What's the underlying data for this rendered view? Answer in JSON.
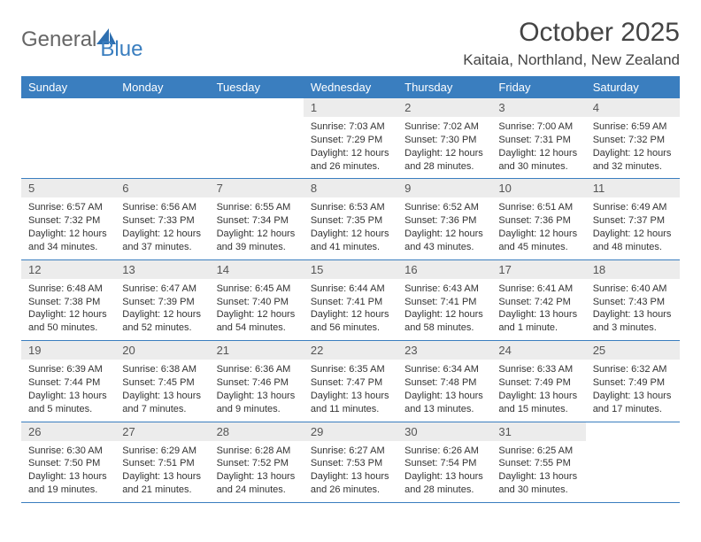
{
  "brand": {
    "part1": "General",
    "part2": "Blue"
  },
  "title": "October 2025",
  "location": "Kaitaia, Northland, New Zealand",
  "theme": {
    "header_bg": "#3a7ebf",
    "header_fg": "#ffffff",
    "daynum_bg": "#ececec",
    "border_color": "#3a7ebf",
    "text_color": "#333333"
  },
  "weekdays": [
    "Sunday",
    "Monday",
    "Tuesday",
    "Wednesday",
    "Thursday",
    "Friday",
    "Saturday"
  ],
  "weeks": [
    [
      null,
      null,
      null,
      {
        "n": "1",
        "sr": "7:03 AM",
        "ss": "7:29 PM",
        "dl": "12 hours and 26 minutes."
      },
      {
        "n": "2",
        "sr": "7:02 AM",
        "ss": "7:30 PM",
        "dl": "12 hours and 28 minutes."
      },
      {
        "n": "3",
        "sr": "7:00 AM",
        "ss": "7:31 PM",
        "dl": "12 hours and 30 minutes."
      },
      {
        "n": "4",
        "sr": "6:59 AM",
        "ss": "7:32 PM",
        "dl": "12 hours and 32 minutes."
      }
    ],
    [
      {
        "n": "5",
        "sr": "6:57 AM",
        "ss": "7:32 PM",
        "dl": "12 hours and 34 minutes."
      },
      {
        "n": "6",
        "sr": "6:56 AM",
        "ss": "7:33 PM",
        "dl": "12 hours and 37 minutes."
      },
      {
        "n": "7",
        "sr": "6:55 AM",
        "ss": "7:34 PM",
        "dl": "12 hours and 39 minutes."
      },
      {
        "n": "8",
        "sr": "6:53 AM",
        "ss": "7:35 PM",
        "dl": "12 hours and 41 minutes."
      },
      {
        "n": "9",
        "sr": "6:52 AM",
        "ss": "7:36 PM",
        "dl": "12 hours and 43 minutes."
      },
      {
        "n": "10",
        "sr": "6:51 AM",
        "ss": "7:36 PM",
        "dl": "12 hours and 45 minutes."
      },
      {
        "n": "11",
        "sr": "6:49 AM",
        "ss": "7:37 PM",
        "dl": "12 hours and 48 minutes."
      }
    ],
    [
      {
        "n": "12",
        "sr": "6:48 AM",
        "ss": "7:38 PM",
        "dl": "12 hours and 50 minutes."
      },
      {
        "n": "13",
        "sr": "6:47 AM",
        "ss": "7:39 PM",
        "dl": "12 hours and 52 minutes."
      },
      {
        "n": "14",
        "sr": "6:45 AM",
        "ss": "7:40 PM",
        "dl": "12 hours and 54 minutes."
      },
      {
        "n": "15",
        "sr": "6:44 AM",
        "ss": "7:41 PM",
        "dl": "12 hours and 56 minutes."
      },
      {
        "n": "16",
        "sr": "6:43 AM",
        "ss": "7:41 PM",
        "dl": "12 hours and 58 minutes."
      },
      {
        "n": "17",
        "sr": "6:41 AM",
        "ss": "7:42 PM",
        "dl": "13 hours and 1 minute."
      },
      {
        "n": "18",
        "sr": "6:40 AM",
        "ss": "7:43 PM",
        "dl": "13 hours and 3 minutes."
      }
    ],
    [
      {
        "n": "19",
        "sr": "6:39 AM",
        "ss": "7:44 PM",
        "dl": "13 hours and 5 minutes."
      },
      {
        "n": "20",
        "sr": "6:38 AM",
        "ss": "7:45 PM",
        "dl": "13 hours and 7 minutes."
      },
      {
        "n": "21",
        "sr": "6:36 AM",
        "ss": "7:46 PM",
        "dl": "13 hours and 9 minutes."
      },
      {
        "n": "22",
        "sr": "6:35 AM",
        "ss": "7:47 PM",
        "dl": "13 hours and 11 minutes."
      },
      {
        "n": "23",
        "sr": "6:34 AM",
        "ss": "7:48 PM",
        "dl": "13 hours and 13 minutes."
      },
      {
        "n": "24",
        "sr": "6:33 AM",
        "ss": "7:49 PM",
        "dl": "13 hours and 15 minutes."
      },
      {
        "n": "25",
        "sr": "6:32 AM",
        "ss": "7:49 PM",
        "dl": "13 hours and 17 minutes."
      }
    ],
    [
      {
        "n": "26",
        "sr": "6:30 AM",
        "ss": "7:50 PM",
        "dl": "13 hours and 19 minutes."
      },
      {
        "n": "27",
        "sr": "6:29 AM",
        "ss": "7:51 PM",
        "dl": "13 hours and 21 minutes."
      },
      {
        "n": "28",
        "sr": "6:28 AM",
        "ss": "7:52 PM",
        "dl": "13 hours and 24 minutes."
      },
      {
        "n": "29",
        "sr": "6:27 AM",
        "ss": "7:53 PM",
        "dl": "13 hours and 26 minutes."
      },
      {
        "n": "30",
        "sr": "6:26 AM",
        "ss": "7:54 PM",
        "dl": "13 hours and 28 minutes."
      },
      {
        "n": "31",
        "sr": "6:25 AM",
        "ss": "7:55 PM",
        "dl": "13 hours and 30 minutes."
      },
      null
    ]
  ],
  "labels": {
    "sunrise": "Sunrise:",
    "sunset": "Sunset:",
    "daylight": "Daylight:"
  }
}
